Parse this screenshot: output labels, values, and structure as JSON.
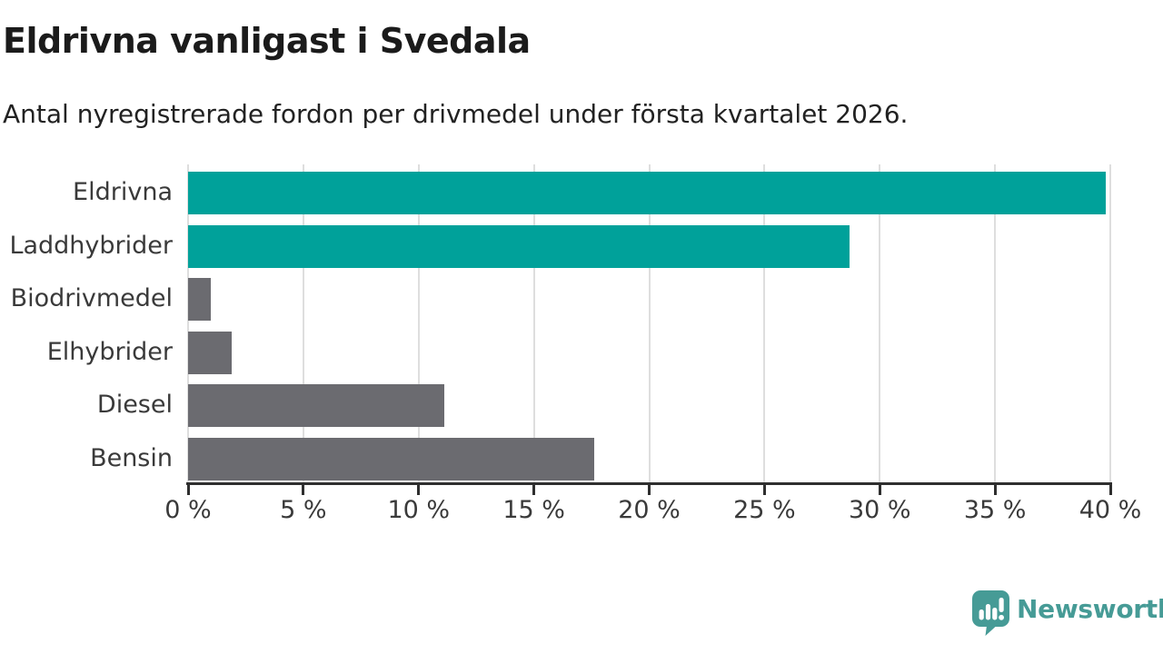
{
  "header": {
    "title": "Eldrivna vanligast i Svedala",
    "subtitle": "Antal nyregistrerade fordon per drivmedel under första kvartalet 2026."
  },
  "chart_data": {
    "type": "bar",
    "orientation": "horizontal",
    "title": "Eldrivna vanligast i Svedala",
    "subtitle": "Antal nyregistrerade fordon per drivmedel under första kvartalet 2026.",
    "categories": [
      "Eldrivna",
      "Laddhybrider",
      "Biodrivmedel",
      "Elhybrider",
      "Diesel",
      "Bensin"
    ],
    "values": [
      39.8,
      28.7,
      1.0,
      1.9,
      11.1,
      17.6
    ],
    "unit": "%",
    "bar_colors": [
      "#00a19a",
      "#00a19a",
      "#6b6b70",
      "#6b6b70",
      "#6b6b70",
      "#6b6b70"
    ],
    "xlim": [
      0,
      40
    ],
    "x_ticks": [
      0,
      5,
      10,
      15,
      20,
      25,
      30,
      35,
      40
    ],
    "x_tick_labels": [
      "0 %",
      "5 %",
      "10 %",
      "15 %",
      "20 %",
      "25 %",
      "30 %",
      "35 %",
      "40 %"
    ],
    "xlabel": "",
    "ylabel": "",
    "grid": true,
    "legend": false,
    "colors": {
      "teal": "#00a19a",
      "gray": "#6b6b70",
      "axis": "#2f2f2f",
      "gridline": "#dedede",
      "tick_text": "#3a3a3a"
    }
  },
  "footer": {
    "brand": "Newsworthy",
    "brand_color": "#469b96"
  }
}
